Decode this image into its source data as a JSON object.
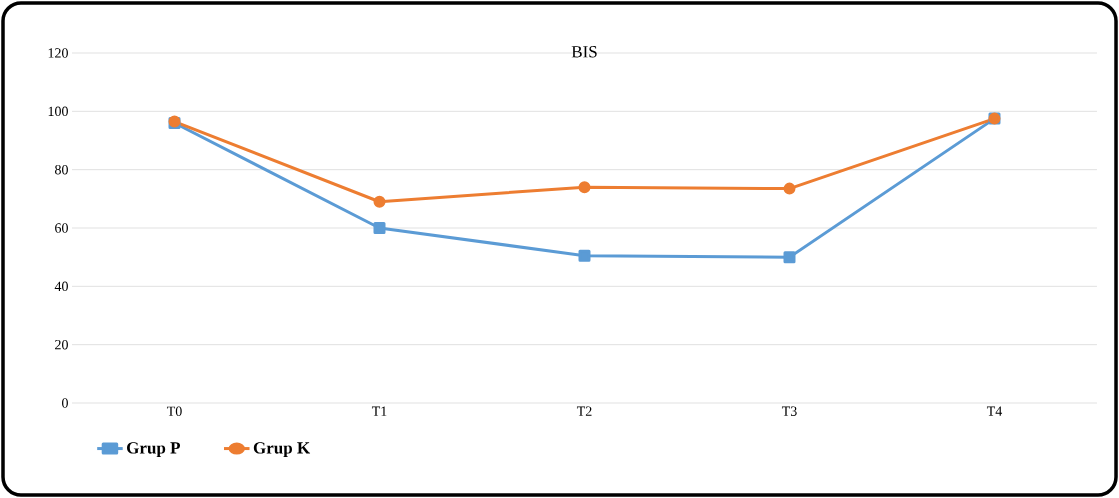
{
  "chart_data": {
    "type": "line",
    "title": "BIS",
    "categories": [
      "T0",
      "T1",
      "T2",
      "T3",
      "T4"
    ],
    "series": [
      {
        "name": "Grup P",
        "color": "#5b9bd5",
        "marker": "square",
        "values": [
          96,
          60,
          50.5,
          50,
          97.5
        ]
      },
      {
        "name": "Grup K",
        "color": "#ed7d31",
        "marker": "circle",
        "values": [
          96.5,
          69,
          74,
          73.5,
          97.5
        ]
      }
    ],
    "ylim": [
      0,
      120
    ],
    "yticks": [
      0,
      20,
      40,
      60,
      80,
      100,
      120
    ],
    "grid": "y",
    "legend": "bottom left",
    "line_style": "solid"
  }
}
